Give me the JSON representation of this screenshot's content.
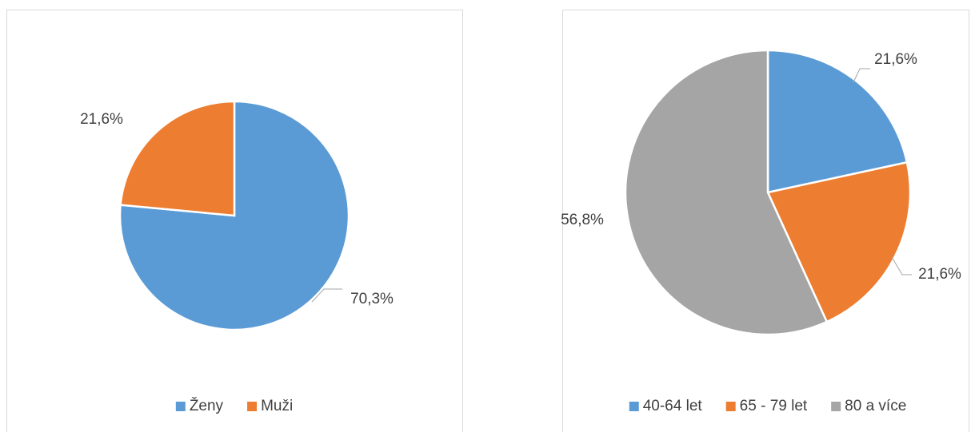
{
  "chart_data": [
    {
      "type": "pie",
      "categories": [
        "Ženy",
        "Muži"
      ],
      "values": [
        70.3,
        21.6
      ],
      "value_labels": [
        "70,3%",
        "21,6%"
      ],
      "colors": [
        "#5b9bd5",
        "#ed7d31"
      ],
      "legend": "bottom"
    },
    {
      "type": "pie",
      "categories": [
        "40-64 let",
        "65 - 79 let",
        "80 a více"
      ],
      "values": [
        21.6,
        21.6,
        56.8
      ],
      "value_labels": [
        "21,6%",
        "21,6%",
        "56,8%"
      ],
      "colors": [
        "#5b9bd5",
        "#ed7d31",
        "#a5a5a5"
      ],
      "legend": "bottom"
    }
  ]
}
